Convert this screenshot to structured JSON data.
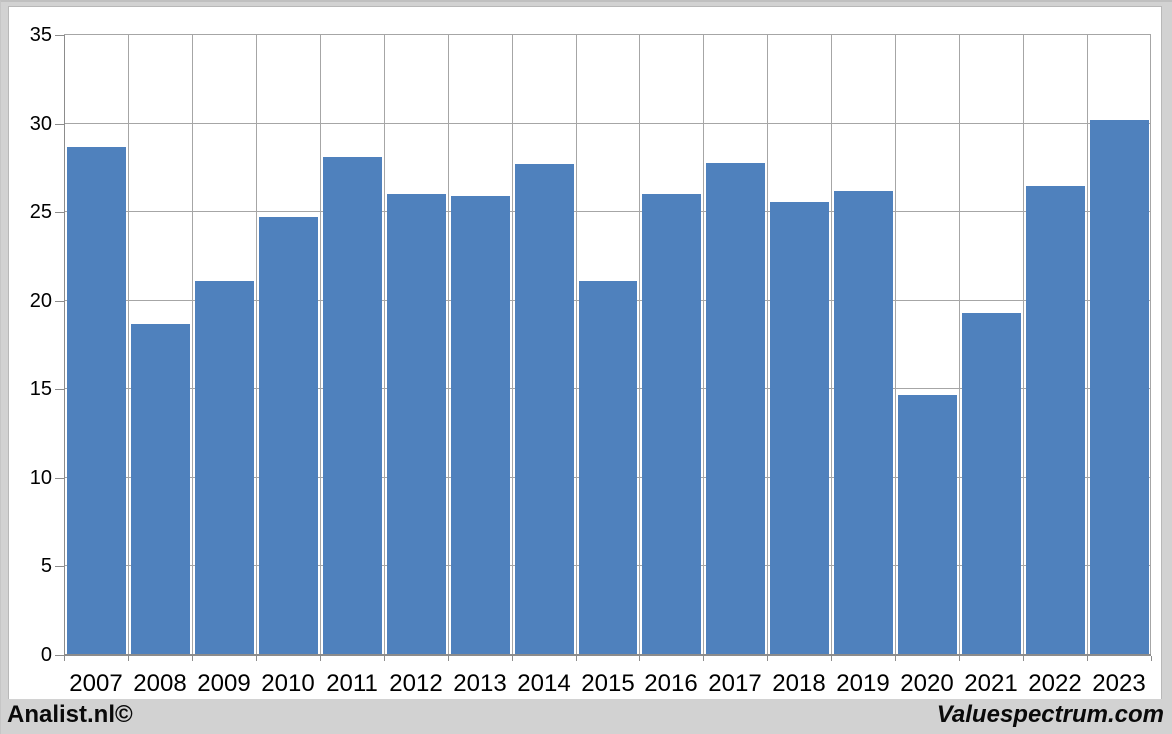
{
  "footer": {
    "left_brand": "Analist.nl©",
    "right_brand": "Valuespectrum.com"
  },
  "colors": {
    "bar": "#4f81bd",
    "gridline": "#a6a6a6",
    "axis": "#8c8c8c",
    "frame_background": "#d2d2d2",
    "plot_background": "#ffffff"
  },
  "chart_data": {
    "type": "bar",
    "title": "",
    "xlabel": "",
    "ylabel": "",
    "categories": [
      "2007",
      "2008",
      "2009",
      "2010",
      "2011",
      "2012",
      "2013",
      "2014",
      "2015",
      "2016",
      "2017",
      "2018",
      "2019",
      "2020",
      "2021",
      "2022",
      "2023"
    ],
    "values": [
      28.7,
      18.7,
      21.1,
      24.7,
      28.1,
      26.0,
      25.9,
      27.7,
      21.1,
      26.0,
      27.8,
      25.6,
      26.2,
      14.7,
      19.3,
      26.5,
      30.2
    ],
    "ylim": [
      0,
      35
    ],
    "yticks": [
      0,
      5,
      10,
      15,
      20,
      25,
      30,
      35
    ],
    "grid": true,
    "legend": false
  }
}
